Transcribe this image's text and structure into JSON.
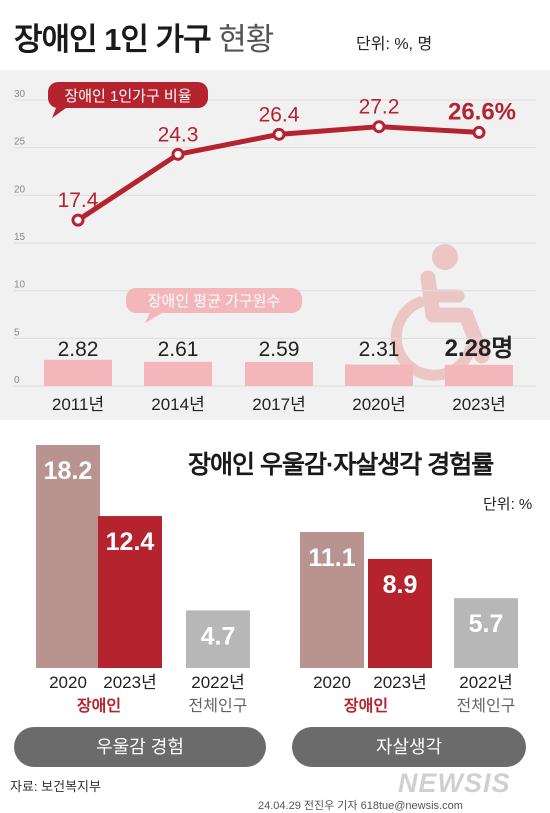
{
  "header": {
    "title_bold": "장애인 1인 가구",
    "title_light": "현황",
    "unit": "단위: %, 명"
  },
  "chart_data": [
    {
      "type": "line",
      "series_label": "장애인 1인가구 비율",
      "x": [
        "2011년",
        "2014년",
        "2017년",
        "2020년",
        "2023년"
      ],
      "values": [
        17.4,
        24.3,
        26.4,
        27.2,
        26.6
      ],
      "value_labels": [
        "17.4",
        "24.3",
        "26.4",
        "27.2",
        "26.6%"
      ],
      "ylim": [
        0,
        30
      ],
      "yticks": [
        "0",
        "5",
        "10",
        "15",
        "20",
        "25",
        "30"
      ],
      "colors": {
        "line": "#b5232f",
        "point_fill": "#ffffff",
        "panel": "#f1f1f1"
      }
    },
    {
      "type": "bar",
      "series_label": "장애인 평균 가구원수",
      "categories": [
        "2011년",
        "2014년",
        "2017년",
        "2020년",
        "2023년"
      ],
      "values": [
        2.82,
        2.61,
        2.59,
        2.31,
        2.28
      ],
      "value_labels": [
        "2.82",
        "2.61",
        "2.59",
        "2.31",
        "2.28명"
      ],
      "colors": {
        "bar": "#f3b7bb"
      }
    },
    {
      "type": "bar",
      "title": "장애인 우울감·자살생각 경험률",
      "unit": "단위: %",
      "groups": [
        {
          "name": "우울감 경험",
          "bars": [
            {
              "year": "2020",
              "sub": "장애인",
              "value": 18.2,
              "color": "#b8938f"
            },
            {
              "year": "2023년",
              "sub": "장애인",
              "value": 12.4,
              "color": "#b5232f"
            },
            {
              "year": "2022년",
              "sub": "전체인구",
              "value": 4.7,
              "color": "#b7b7b7"
            }
          ]
        },
        {
          "name": "자살생각",
          "bars": [
            {
              "year": "2020",
              "sub": "장애인",
              "value": 11.1,
              "color": "#b8938f"
            },
            {
              "year": "2023년",
              "sub": "장애인",
              "value": 8.9,
              "color": "#b5232f"
            },
            {
              "year": "2022년",
              "sub": "전체인구",
              "value": 5.7,
              "color": "#b7b7b7"
            }
          ]
        }
      ],
      "value_labels": [
        [
          "18.2",
          "12.4",
          "4.7"
        ],
        [
          "11.1",
          "8.9",
          "5.7"
        ]
      ],
      "sub_label_colors": {
        "장애인": "#b5232f",
        "전체인구": "#666666"
      }
    }
  ],
  "footer": {
    "source": "자료: 보건복지부",
    "credit": "24.04.29 전진우 기자 618tue@newsis.com",
    "logo": "NEWSIS"
  },
  "icons": {
    "wheelchair": "wheelchair-icon"
  }
}
